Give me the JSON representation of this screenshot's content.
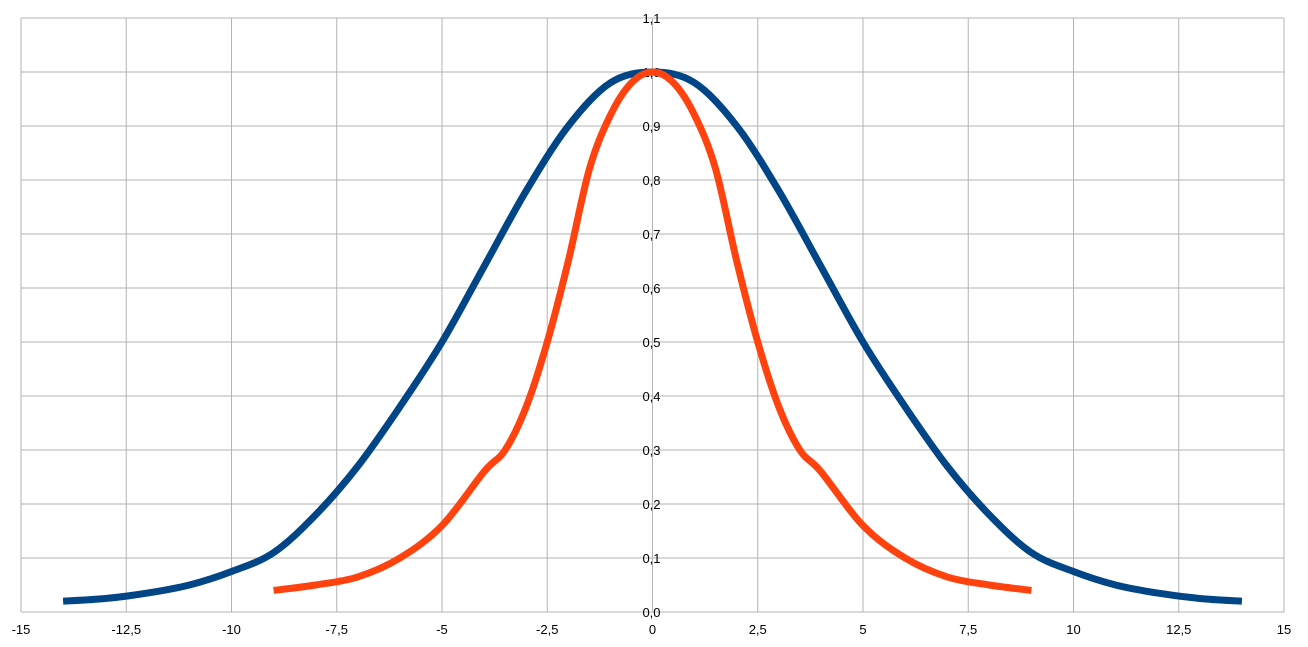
{
  "chart_data": {
    "type": "line",
    "title": "",
    "xlabel": "",
    "ylabel": "",
    "xlim": [
      -15,
      15
    ],
    "ylim": [
      0,
      1.1
    ],
    "grid": true,
    "x_ticks": [
      "-15",
      "-12,5",
      "-10",
      "-7,5",
      "-5",
      "-2,5",
      "0",
      "2,5",
      "5",
      "7,5",
      "10",
      "12,5",
      "15"
    ],
    "y_ticks": [
      "0,0",
      "0,1",
      "0,2",
      "0,3",
      "0,4",
      "0,5",
      "0,6",
      "0,7",
      "0,8",
      "0,9",
      "1,0",
      "1,1"
    ],
    "series": [
      {
        "color": "#004586",
        "x": [
          -14,
          -13,
          -12,
          -11,
          -10,
          -9,
          -8,
          -7,
          -6,
          -5,
          -4,
          -3,
          -2,
          -1,
          0,
          1,
          2,
          3,
          4,
          5,
          6,
          7,
          8,
          9,
          10,
          11,
          12,
          13,
          14
        ],
        "y": [
          0.02,
          0.025,
          0.035,
          0.05,
          0.075,
          0.11,
          0.18,
          0.27,
          0.38,
          0.5,
          0.64,
          0.78,
          0.9,
          0.98,
          1.0,
          0.98,
          0.9,
          0.78,
          0.64,
          0.5,
          0.38,
          0.27,
          0.18,
          0.11,
          0.075,
          0.05,
          0.035,
          0.025,
          0.02
        ]
      },
      {
        "color": "#ff420e",
        "x": [
          -9,
          -8,
          -7,
          -6,
          -5,
          -4,
          -3.5,
          -3,
          -2.5,
          -2,
          -1.5,
          -1,
          -0.5,
          0,
          0.5,
          1,
          1.5,
          2,
          2.5,
          3,
          3.5,
          4,
          5,
          6,
          7,
          8,
          9
        ],
        "y": [
          0.04,
          0.05,
          0.065,
          0.1,
          0.16,
          0.26,
          0.3,
          0.38,
          0.5,
          0.65,
          0.82,
          0.92,
          0.98,
          1.0,
          0.98,
          0.92,
          0.82,
          0.65,
          0.5,
          0.38,
          0.3,
          0.26,
          0.16,
          0.1,
          0.065,
          0.05,
          0.04
        ]
      }
    ]
  }
}
